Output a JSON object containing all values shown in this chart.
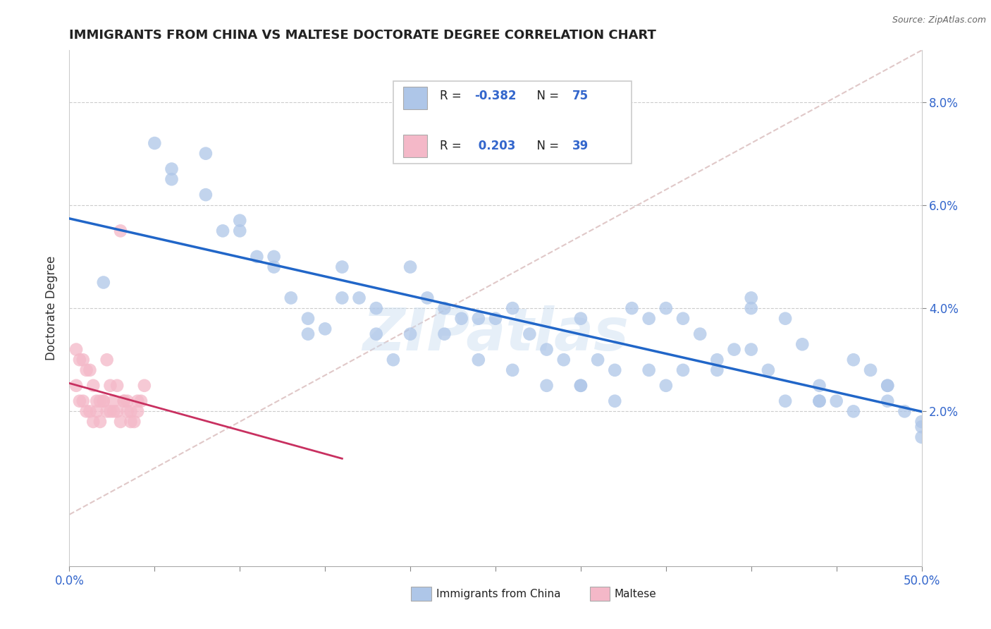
{
  "title": "IMMIGRANTS FROM CHINA VS MALTESE DOCTORATE DEGREE CORRELATION CHART",
  "source": "Source: ZipAtlas.com",
  "ylabel": "Doctorate Degree",
  "ylabel_right_ticks": [
    "8.0%",
    "6.0%",
    "4.0%",
    "2.0%"
  ],
  "ylabel_right_vals": [
    0.08,
    0.06,
    0.04,
    0.02
  ],
  "xlim": [
    0.0,
    0.5
  ],
  "ylim": [
    -0.01,
    0.09
  ],
  "legend_r1": "R = -0.382",
  "legend_n1": "N = 75",
  "legend_r2": "R =  0.203",
  "legend_n2": "N = 39",
  "watermark": "ZIPatlas",
  "china_color": "#aec6e8",
  "maltese_color": "#f4b8c8",
  "china_line_color": "#2166c8",
  "maltese_line_color": "#c83060",
  "diag_line_color": "#e0c8c8",
  "china_scatter_x": [
    0.02,
    0.05,
    0.06,
    0.08,
    0.09,
    0.1,
    0.11,
    0.12,
    0.13,
    0.14,
    0.15,
    0.16,
    0.17,
    0.18,
    0.19,
    0.2,
    0.21,
    0.22,
    0.23,
    0.24,
    0.25,
    0.26,
    0.27,
    0.28,
    0.29,
    0.3,
    0.31,
    0.32,
    0.33,
    0.34,
    0.35,
    0.36,
    0.37,
    0.38,
    0.39,
    0.4,
    0.41,
    0.42,
    0.43,
    0.44,
    0.45,
    0.46,
    0.47,
    0.48,
    0.49,
    0.5,
    0.06,
    0.08,
    0.1,
    0.12,
    0.14,
    0.16,
    0.18,
    0.2,
    0.22,
    0.24,
    0.26,
    0.28,
    0.3,
    0.32,
    0.34,
    0.36,
    0.38,
    0.4,
    0.42,
    0.44,
    0.46,
    0.48,
    0.5,
    0.3,
    0.44,
    0.48,
    0.5,
    0.35,
    0.4
  ],
  "china_scatter_y": [
    0.045,
    0.072,
    0.067,
    0.062,
    0.055,
    0.057,
    0.05,
    0.048,
    0.042,
    0.038,
    0.036,
    0.048,
    0.042,
    0.035,
    0.03,
    0.048,
    0.042,
    0.04,
    0.038,
    0.038,
    0.038,
    0.04,
    0.035,
    0.032,
    0.03,
    0.038,
    0.03,
    0.028,
    0.04,
    0.038,
    0.04,
    0.038,
    0.035,
    0.03,
    0.032,
    0.032,
    0.028,
    0.038,
    0.033,
    0.025,
    0.022,
    0.03,
    0.028,
    0.022,
    0.02,
    0.018,
    0.065,
    0.07,
    0.055,
    0.05,
    0.035,
    0.042,
    0.04,
    0.035,
    0.035,
    0.03,
    0.028,
    0.025,
    0.025,
    0.022,
    0.028,
    0.028,
    0.028,
    0.04,
    0.022,
    0.022,
    0.02,
    0.025,
    0.015,
    0.025,
    0.022,
    0.025,
    0.017,
    0.025,
    0.042
  ],
  "maltese_scatter_x": [
    0.004,
    0.006,
    0.008,
    0.01,
    0.012,
    0.014,
    0.016,
    0.018,
    0.02,
    0.022,
    0.024,
    0.026,
    0.028,
    0.03,
    0.032,
    0.034,
    0.036,
    0.038,
    0.04,
    0.042,
    0.004,
    0.006,
    0.008,
    0.01,
    0.012,
    0.014,
    0.016,
    0.018,
    0.02,
    0.022,
    0.024,
    0.026,
    0.028,
    0.03,
    0.032,
    0.034,
    0.036,
    0.04,
    0.044
  ],
  "maltese_scatter_y": [
    0.025,
    0.022,
    0.022,
    0.02,
    0.02,
    0.018,
    0.02,
    0.018,
    0.022,
    0.02,
    0.02,
    0.02,
    0.02,
    0.018,
    0.022,
    0.02,
    0.018,
    0.018,
    0.02,
    0.022,
    0.032,
    0.03,
    0.03,
    0.028,
    0.028,
    0.025,
    0.022,
    0.022,
    0.022,
    0.03,
    0.025,
    0.022,
    0.025,
    0.055,
    0.022,
    0.022,
    0.02,
    0.022,
    0.025
  ]
}
